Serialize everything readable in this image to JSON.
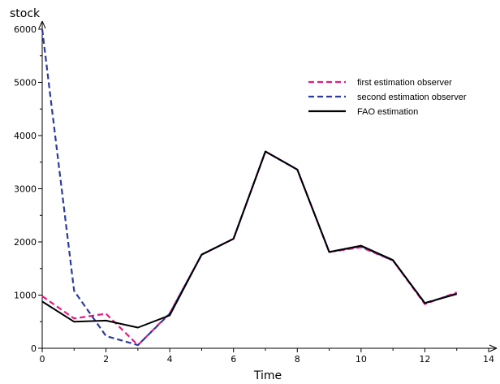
{
  "chart_data": {
    "type": "line",
    "xlabel": "Time",
    "ylabel": "stock",
    "xlim": [
      0,
      14
    ],
    "ylim": [
      0,
      6000
    ],
    "xticks": [
      "0",
      "2",
      "4",
      "6",
      "8",
      "10",
      "12",
      "14"
    ],
    "yticks": [
      "0",
      "1000",
      "2000",
      "3000",
      "4000",
      "5000",
      "6000"
    ],
    "grid": false,
    "legend_position": "top-right",
    "series": [
      {
        "name": "first estimation observer",
        "color": "#e6197f",
        "dash": "dashed",
        "x": [
          0,
          1,
          2,
          3,
          4,
          5,
          6,
          7,
          8,
          9,
          10,
          11,
          12,
          13
        ],
        "y": [
          980,
          560,
          650,
          60,
          660,
          1760,
          2060,
          3700,
          3360,
          1810,
          1900,
          1650,
          830,
          1050
        ]
      },
      {
        "name": "second estimation observer",
        "color": "#2b3b9e",
        "dash": "dashed",
        "x": [
          0,
          1,
          2,
          3,
          4,
          5,
          6,
          7,
          8,
          9,
          10,
          11,
          12,
          13
        ],
        "y": [
          6000,
          1080,
          230,
          60,
          650,
          1760,
          2060,
          3700,
          3360,
          1810,
          1920,
          1650,
          850,
          1030
        ]
      },
      {
        "name": "FAO estimation",
        "color": "#000000",
        "dash": "solid",
        "x": [
          0,
          1,
          2,
          3,
          4,
          5,
          6,
          7,
          8,
          9,
          10,
          11,
          12,
          13
        ],
        "y": [
          880,
          500,
          520,
          390,
          620,
          1760,
          2060,
          3700,
          3360,
          1810,
          1930,
          1660,
          850,
          1020
        ]
      }
    ]
  }
}
